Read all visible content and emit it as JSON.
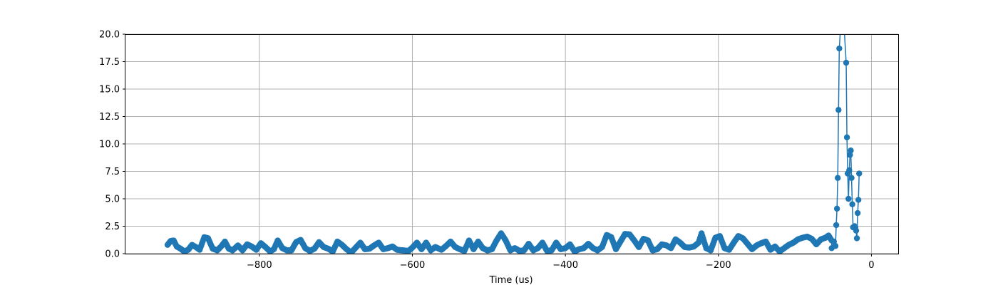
{
  "chart_data": {
    "type": "line",
    "title": "",
    "xlabel": "Time (us)",
    "ylabel": "",
    "xlim": [
      -975,
      35
    ],
    "ylim": [
      0,
      20
    ],
    "x_ticks": [
      -800,
      -600,
      -400,
      -200,
      0
    ],
    "x_tick_labels": [
      "−800",
      "−600",
      "−400",
      "−200",
      "0"
    ],
    "y_ticks": [
      0,
      2.5,
      5,
      7.5,
      10,
      12.5,
      15,
      17.5,
      20
    ],
    "y_tick_labels": [
      "0.0",
      "2.5",
      "5.0",
      "7.5",
      "10.0",
      "12.5",
      "15.0",
      "17.5",
      "20.0"
    ],
    "grid": true,
    "legend": "none",
    "series_color": "#1f77b4",
    "marker": "circle",
    "baseline_anchors": [
      [
        -920,
        0.8
      ],
      [
        -916,
        1.15
      ],
      [
        -912,
        1.2
      ],
      [
        -908,
        0.65
      ],
      [
        -903,
        0.45
      ],
      [
        -898,
        0.2
      ],
      [
        -893,
        0.35
      ],
      [
        -888,
        0.8
      ],
      [
        -883,
        0.6
      ],
      [
        -878,
        0.35
      ],
      [
        -872,
        1.5
      ],
      [
        -867,
        1.4
      ],
      [
        -861,
        0.45
      ],
      [
        -855,
        0.3
      ],
      [
        -850,
        0.65
      ],
      [
        -845,
        1.1
      ],
      [
        -840,
        0.45
      ],
      [
        -835,
        0.3
      ],
      [
        -828,
        0.75
      ],
      [
        -822,
        0.3
      ],
      [
        -816,
        0.85
      ],
      [
        -810,
        0.65
      ],
      [
        -804,
        0.35
      ],
      [
        -798,
        0.95
      ],
      [
        -792,
        0.6
      ],
      [
        -786,
        0.2
      ],
      [
        -781,
        0.4
      ],
      [
        -776,
        1.2
      ],
      [
        -770,
        0.5
      ],
      [
        -764,
        0.3
      ],
      [
        -758,
        0.3
      ],
      [
        -752,
        1.05
      ],
      [
        -746,
        1.25
      ],
      [
        -740,
        0.5
      ],
      [
        -734,
        0.25
      ],
      [
        -728,
        0.45
      ],
      [
        -722,
        1.05
      ],
      [
        -716,
        0.6
      ],
      [
        -710,
        0.45
      ],
      [
        -704,
        0.2
      ],
      [
        -698,
        1.1
      ],
      [
        -692,
        0.8
      ],
      [
        -686,
        0.4
      ],
      [
        -680,
        0.1
      ],
      [
        -674,
        0.55
      ],
      [
        -668,
        1.0
      ],
      [
        -662,
        0.4
      ],
      [
        -656,
        0.45
      ],
      [
        -650,
        0.75
      ],
      [
        -644,
        1.0
      ],
      [
        -638,
        0.4
      ],
      [
        -632,
        0.5
      ],
      [
        -626,
        0.65
      ],
      [
        -620,
        0.35
      ],
      [
        -612,
        0.3
      ],
      [
        -605,
        0.25
      ],
      [
        -600,
        0.55
      ],
      [
        -594,
        1.0
      ],
      [
        -588,
        0.4
      ],
      [
        -582,
        1.0
      ],
      [
        -576,
        0.3
      ],
      [
        -570,
        0.6
      ],
      [
        -562,
        0.35
      ],
      [
        -556,
        0.7
      ],
      [
        -550,
        1.1
      ],
      [
        -544,
        0.6
      ],
      [
        -538,
        0.4
      ],
      [
        -532,
        0.25
      ],
      [
        -526,
        1.2
      ],
      [
        -520,
        0.4
      ],
      [
        -514,
        1.1
      ],
      [
        -508,
        0.5
      ],
      [
        -502,
        0.3
      ],
      [
        -496,
        0.4
      ],
      [
        -490,
        1.2
      ],
      [
        -484,
        1.85
      ],
      [
        -478,
        1.2
      ],
      [
        -472,
        0.3
      ],
      [
        -466,
        0.5
      ],
      [
        -460,
        0.25
      ],
      [
        -454,
        0.3
      ],
      [
        -448,
        0.9
      ],
      [
        -442,
        0.3
      ],
      [
        -436,
        0.5
      ],
      [
        -430,
        1.0
      ],
      [
        -424,
        0.25
      ],
      [
        -418,
        0.3
      ],
      [
        -412,
        1.0
      ],
      [
        -406,
        0.4
      ],
      [
        -400,
        0.5
      ],
      [
        -394,
        0.85
      ],
      [
        -388,
        0.2
      ],
      [
        -382,
        0.4
      ],
      [
        -376,
        0.5
      ],
      [
        -370,
        0.9
      ],
      [
        -364,
        0.5
      ],
      [
        -358,
        0.3
      ],
      [
        -352,
        0.6
      ],
      [
        -346,
        1.7
      ],
      [
        -340,
        1.5
      ],
      [
        -334,
        0.4
      ],
      [
        -328,
        1.1
      ],
      [
        -322,
        1.8
      ],
      [
        -316,
        1.75
      ],
      [
        -310,
        1.2
      ],
      [
        -304,
        0.6
      ],
      [
        -298,
        1.35
      ],
      [
        -292,
        1.2
      ],
      [
        -286,
        0.3
      ],
      [
        -280,
        0.4
      ],
      [
        -274,
        0.85
      ],
      [
        -268,
        0.75
      ],
      [
        -262,
        0.5
      ],
      [
        -256,
        1.3
      ],
      [
        -250,
        1.0
      ],
      [
        -244,
        0.6
      ],
      [
        -238,
        0.55
      ],
      [
        -232,
        0.65
      ],
      [
        -226,
        1.0
      ],
      [
        -222,
        1.85
      ],
      [
        -216,
        0.5
      ],
      [
        -210,
        0.3
      ],
      [
        -204,
        1.45
      ],
      [
        -198,
        1.6
      ],
      [
        -192,
        0.5
      ],
      [
        -186,
        0.35
      ],
      [
        -180,
        1.0
      ],
      [
        -174,
        1.6
      ],
      [
        -168,
        1.4
      ],
      [
        -162,
        0.9
      ],
      [
        -156,
        0.4
      ],
      [
        -150,
        0.75
      ],
      [
        -144,
        0.95
      ],
      [
        -138,
        1.1
      ],
      [
        -132,
        0.35
      ],
      [
        -126,
        0.65
      ],
      [
        -120,
        0.2
      ],
      [
        -114,
        0.5
      ],
      [
        -108,
        0.8
      ],
      [
        -102,
        1.0
      ],
      [
        -96,
        1.3
      ],
      [
        -90,
        1.45
      ],
      [
        -84,
        1.55
      ],
      [
        -78,
        1.35
      ],
      [
        -72,
        0.85
      ],
      [
        -66,
        1.3
      ],
      [
        -60,
        1.45
      ],
      [
        -56,
        1.65
      ],
      [
        -52,
        1.2
      ]
    ],
    "peak_points": [
      [
        -52,
        0.5
      ],
      [
        -49,
        1.1
      ],
      [
        -47,
        0.7
      ],
      [
        -46,
        2.6
      ],
      [
        -45,
        4.1
      ],
      [
        -44,
        6.9
      ],
      [
        -43,
        13.1
      ],
      [
        -42,
        18.7
      ],
      [
        -40,
        21.0
      ],
      [
        -38,
        23.0
      ],
      [
        -36,
        21.0
      ],
      [
        -33,
        17.4
      ],
      [
        -32,
        10.6
      ],
      [
        -31,
        7.3
      ],
      [
        -30,
        5.0
      ],
      [
        -29,
        7.6
      ],
      [
        -28,
        9.0
      ],
      [
        -27,
        9.4
      ],
      [
        -26,
        6.9
      ],
      [
        -25,
        4.5
      ],
      [
        -24,
        2.4
      ],
      [
        -22,
        2.5
      ],
      [
        -21,
        2.4
      ],
      [
        -20,
        2.1
      ],
      [
        -19,
        1.4
      ],
      [
        -18,
        3.7
      ],
      [
        -17,
        4.9
      ],
      [
        -16,
        7.3
      ]
    ]
  }
}
